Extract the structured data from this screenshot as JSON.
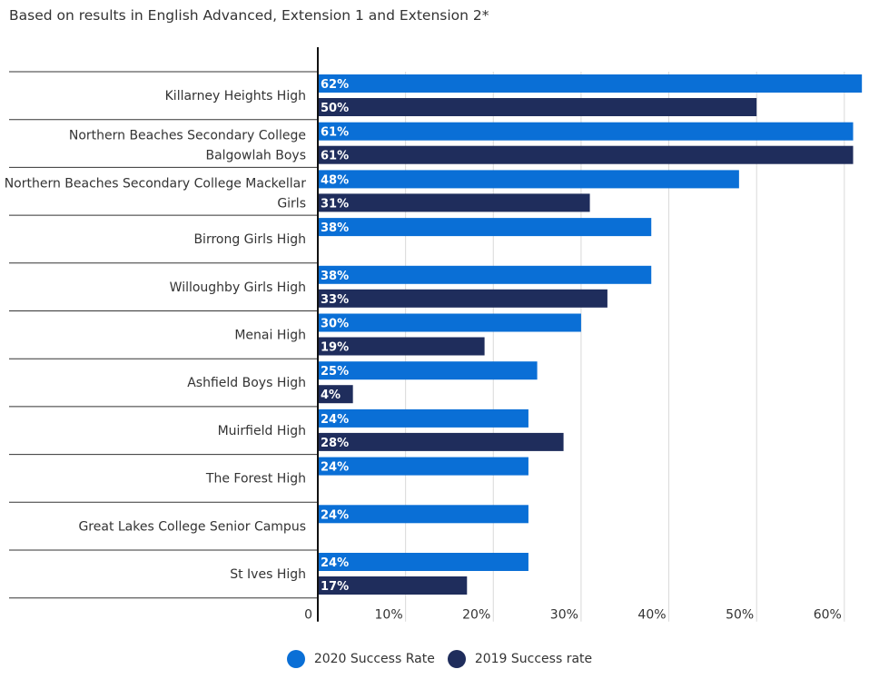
{
  "chart_data": {
    "type": "bar",
    "orientation": "horizontal",
    "subtitle": "Based on results in English Advanced, Extension 1 and Extension 2*",
    "categories": [
      [
        "Killarney Heights High"
      ],
      [
        "Northern Beaches Secondary College",
        "Balgowlah Boys"
      ],
      [
        "Northern Beaches Secondary College Mackellar",
        "Girls"
      ],
      [
        "Birrong Girls High"
      ],
      [
        "Willoughby Girls High"
      ],
      [
        "Menai High"
      ],
      [
        "Ashfield Boys High"
      ],
      [
        "Muirfield High"
      ],
      [
        "The Forest High"
      ],
      [
        "Great Lakes College Senior Campus"
      ],
      [
        "St Ives High"
      ]
    ],
    "series": [
      {
        "name": "2020 Success Rate",
        "color": "#0a6fd6",
        "values": [
          62,
          61,
          48,
          38,
          38,
          30,
          25,
          24,
          24,
          24,
          24
        ],
        "labels": [
          "62%",
          "61%",
          "48%",
          "38%",
          "38%",
          "30%",
          "25%",
          "24%",
          "24%",
          "24%",
          "24%"
        ]
      },
      {
        "name": "2019 Success rate",
        "color": "#1f2d5c",
        "values": [
          50,
          61,
          31,
          null,
          33,
          19,
          4,
          28,
          null,
          null,
          17
        ],
        "labels": [
          "50%",
          "61%",
          "31%",
          null,
          "33%",
          "19%",
          "4%",
          "28%",
          null,
          null,
          "17%"
        ]
      }
    ],
    "x_ticks": [
      0,
      10,
      20,
      30,
      40,
      50,
      60
    ],
    "x_tick_labels": [
      "0",
      "10%",
      "20%",
      "30%",
      "40%",
      "50%",
      "60%"
    ],
    "xlim": [
      0,
      62.5
    ],
    "grid": true,
    "legend_position": "bottom-center"
  }
}
